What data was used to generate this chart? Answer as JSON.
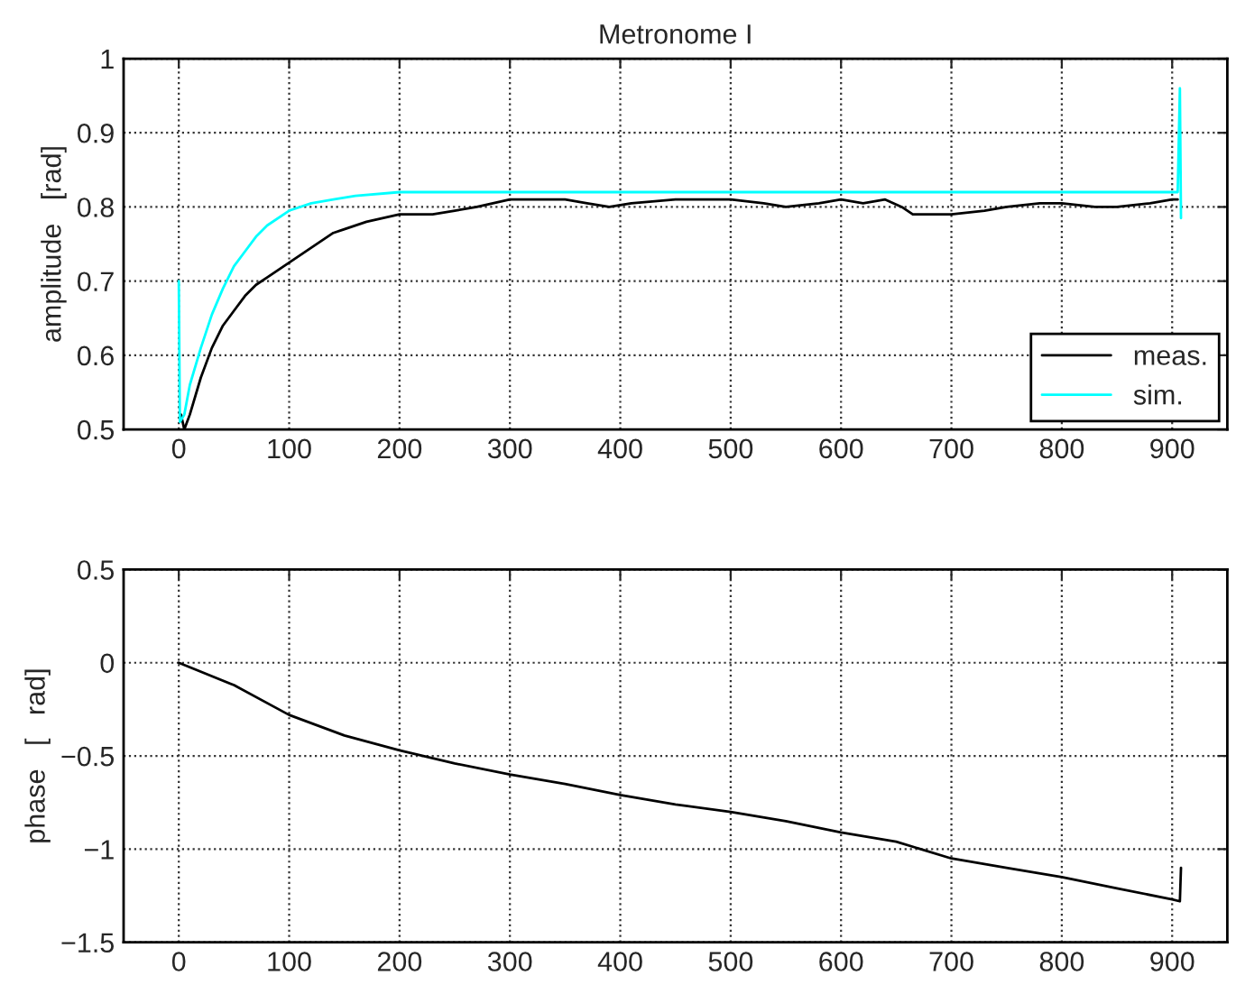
{
  "chart_data": [
    {
      "type": "line",
      "title": "Metronome I",
      "ylabel": "amplitude   [rad]",
      "xlim": [
        -50,
        950
      ],
      "xticks": [
        0,
        100,
        200,
        300,
        400,
        500,
        600,
        700,
        800,
        900
      ],
      "ylim": [
        0.5,
        1
      ],
      "yticks": [
        0.5,
        0.6,
        0.7,
        0.8,
        0.9,
        1
      ],
      "grid": true,
      "legend": "bottom right",
      "line_style": "solid",
      "series": [
        {
          "name": "meas.",
          "color": "#000000",
          "x": [
            2,
            5,
            10,
            20,
            30,
            40,
            50,
            60,
            70,
            80,
            90,
            100,
            120,
            140,
            150,
            170,
            200,
            230,
            250,
            270,
            300,
            330,
            350,
            370,
            390,
            410,
            450,
            480,
            500,
            530,
            550,
            580,
            600,
            620,
            640,
            655,
            665,
            700,
            730,
            750,
            780,
            800,
            830,
            850,
            880,
            900,
            905
          ],
          "values": [
            0.52,
            0.5,
            0.52,
            0.57,
            0.61,
            0.64,
            0.66,
            0.68,
            0.695,
            0.705,
            0.715,
            0.725,
            0.745,
            0.765,
            0.77,
            0.78,
            0.79,
            0.79,
            0.795,
            0.8,
            0.81,
            0.81,
            0.81,
            0.805,
            0.8,
            0.805,
            0.81,
            0.81,
            0.81,
            0.805,
            0.8,
            0.805,
            0.81,
            0.805,
            0.81,
            0.8,
            0.79,
            0.79,
            0.795,
            0.8,
            0.805,
            0.805,
            0.8,
            0.8,
            0.805,
            0.81,
            0.81
          ]
        },
        {
          "name": "sim.",
          "color": "#00ffff",
          "x": [
            0,
            1,
            5,
            10,
            20,
            30,
            40,
            50,
            60,
            70,
            80,
            100,
            120,
            140,
            160,
            200,
            300,
            500,
            700,
            900,
            905,
            907,
            908
          ],
          "values": [
            0.7,
            0.51,
            0.52,
            0.56,
            0.61,
            0.655,
            0.69,
            0.72,
            0.74,
            0.76,
            0.775,
            0.795,
            0.805,
            0.81,
            0.815,
            0.82,
            0.82,
            0.82,
            0.82,
            0.82,
            0.82,
            0.96,
            0.785
          ]
        }
      ]
    },
    {
      "type": "line",
      "ylabel": "phase   [   rad]",
      "xlim": [
        -50,
        950
      ],
      "xticks": [
        0,
        100,
        200,
        300,
        400,
        500,
        600,
        700,
        800,
        900
      ],
      "ylim": [
        -1.5,
        0.5
      ],
      "yticks": [
        -1.5,
        -1,
        -0.5,
        0,
        0.5
      ],
      "grid": true,
      "line_style": "solid",
      "series": [
        {
          "color": "#000000",
          "x": [
            0,
            50,
            100,
            150,
            200,
            250,
            300,
            350,
            400,
            450,
            500,
            550,
            600,
            650,
            700,
            750,
            800,
            850,
            900,
            907,
            908
          ],
          "values": [
            0,
            -0.12,
            -0.28,
            -0.39,
            -0.47,
            -0.54,
            -0.6,
            -0.65,
            -0.71,
            -0.76,
            -0.8,
            -0.85,
            -0.91,
            -0.96,
            -1.05,
            -1.1,
            -1.15,
            -1.21,
            -1.27,
            -1.28,
            -1.1
          ]
        }
      ]
    }
  ]
}
